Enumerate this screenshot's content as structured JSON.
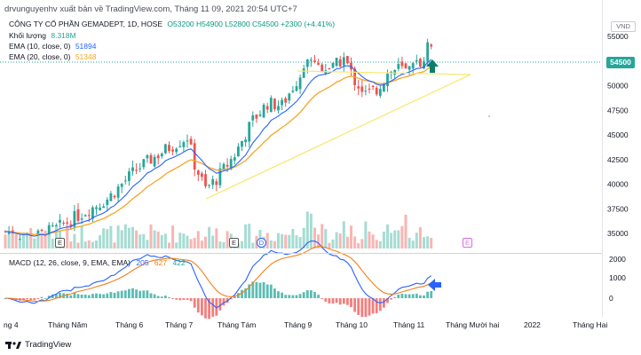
{
  "publication": "drvunguyenhv xuất bản về TradingView.com, Tháng 11 09, 2021 20:54 UTC+7",
  "legend": {
    "symbol": "CÔNG TY CỔ PHẦN GEMADEPT, 1D, HOSE",
    "open": "O53200",
    "high": "H54900",
    "low": "L52800",
    "close": "C54500",
    "change": "+2300 (+4.41%)",
    "volume_label": "Khối lượng",
    "volume_value": "8.318M",
    "ema10_label": "EMA (10, close, 0)",
    "ema10_value": "51894",
    "ema20_label": "EMA (20, close, 0)",
    "ema20_value": "51348"
  },
  "currency": "VND",
  "last_price": "54500",
  "macd": {
    "label": "MACD (12, 26, close, 9, EMA, EMA)",
    "v1": "205",
    "v2": "627",
    "v3": "422"
  },
  "event_markers": [
    "E",
    "E",
    "D",
    "E"
  ],
  "footer": "TradingView",
  "colors": {
    "up": "#26a69a",
    "down": "#ef5350",
    "ema10": "#2962ff",
    "ema20": "#f5a623",
    "triangle": "#f9e76b",
    "arrow_green": "#0f7d6a",
    "arrow_blue": "#2962ff"
  },
  "chart_data": {
    "type": "candlestick",
    "price_axis": {
      "ticks": [
        "55000",
        "52500",
        "50000",
        "47500",
        "45000",
        "42500",
        "40000",
        "37500",
        "35000"
      ],
      "range": [
        33500,
        57500
      ]
    },
    "macd_axis": {
      "ticks": [
        "2000",
        "1000",
        "0"
      ]
    },
    "time_axis": {
      "ticks": [
        "ng 4",
        "Tháng Năm",
        "Tháng 6",
        "Tháng 7",
        "Tháng Tám",
        "Tháng 9",
        "Tháng 10",
        "Tháng 11",
        "Tháng Mười hai",
        "2022",
        "Tháng Hai"
      ]
    }
  }
}
